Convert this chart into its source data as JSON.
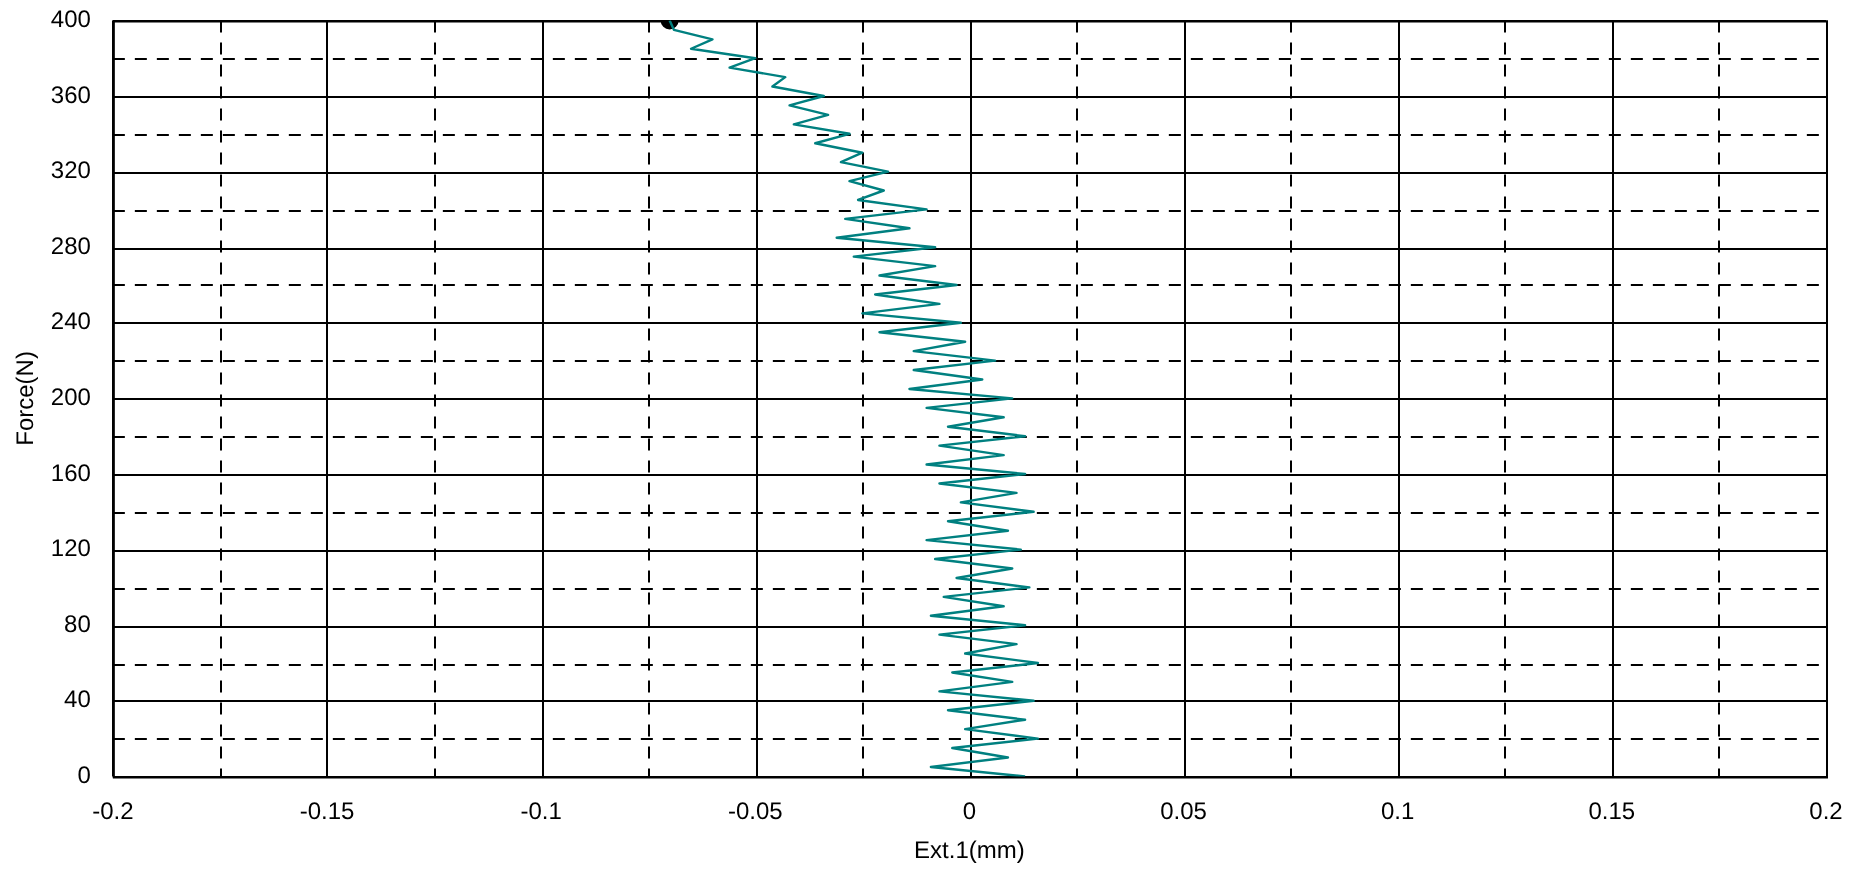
{
  "chart_data": {
    "type": "line",
    "xlabel": "Ext.1(mm)",
    "ylabel": "Force(N)",
    "xlim": [
      -0.2,
      0.2
    ],
    "ylim": [
      0,
      400
    ],
    "xticks": [
      -0.2,
      {
        "value": -0.175,
        "label": null
      },
      -0.15,
      {
        "value": -0.125,
        "label": null
      },
      -0.1,
      {
        "value": -0.075,
        "label": null
      },
      -0.05,
      {
        "value": -0.025,
        "label": null
      },
      0,
      {
        "value": 0.025,
        "label": null
      },
      0.05,
      {
        "value": 0.075,
        "label": null
      },
      0.1,
      {
        "value": 0.125,
        "label": null
      },
      0.15,
      {
        "value": 0.175,
        "label": null
      },
      0.2
    ],
    "yticks": [
      0,
      {
        "value": 20,
        "label": null
      },
      40,
      {
        "value": 60,
        "label": null
      },
      80,
      {
        "value": 100,
        "label": null
      },
      120,
      {
        "value": 140,
        "label": null
      },
      160,
      {
        "value": 180,
        "label": null
      },
      200,
      {
        "value": 220,
        "label": null
      },
      240,
      {
        "value": 260,
        "label": null
      },
      280,
      {
        "value": 300,
        "label": null
      },
      320,
      {
        "value": 340,
        "label": null
      },
      360,
      {
        "value": 380,
        "label": null
      },
      400
    ],
    "grid": true,
    "marker": "none",
    "series": [
      {
        "type": "line",
        "color": "#008080",
        "x": [
          0.013,
          -0.009,
          0.009,
          -0.004,
          0.016,
          -0.001,
          0.013,
          -0.005,
          0.015,
          -0.007,
          0.01,
          -0.004,
          0.016,
          -0.001,
          0.011,
          -0.007,
          0.013,
          -0.009,
          0.008,
          -0.006,
          0.014,
          -0.003,
          0.01,
          -0.008,
          0.012,
          -0.01,
          0.009,
          -0.005,
          0.015,
          -0.002,
          0.011,
          -0.007,
          0.013,
          -0.01,
          0.008,
          -0.007,
          0.013,
          -0.005,
          0.008,
          -0.01,
          0.01,
          -0.014,
          0.003,
          -0.013,
          0.006,
          -0.013,
          -0.001,
          -0.021,
          -0.002,
          -0.025,
          -0.007,
          -0.022,
          -0.003,
          -0.021,
          -0.008,
          -0.027,
          -0.008,
          -0.031,
          -0.014,
          -0.029,
          -0.01,
          -0.026,
          -0.02,
          -0.028,
          -0.019,
          -0.03,
          -0.025,
          -0.036,
          -0.028,
          -0.041,
          -0.033,
          -0.042,
          -0.034,
          -0.046,
          -0.043,
          -0.056,
          -0.05,
          -0.065,
          -0.06,
          -0.069,
          -0.07
        ],
        "values": [
          0,
          5,
          10,
          15,
          20,
          25,
          30,
          35,
          40,
          45,
          50,
          55,
          60,
          65,
          70,
          75,
          80,
          85,
          90,
          95,
          100,
          105,
          110,
          115,
          120,
          125,
          130,
          135,
          140,
          145,
          150,
          155,
          160,
          165,
          170,
          175,
          180,
          185,
          190,
          195,
          200,
          205,
          210,
          215,
          220,
          225,
          230,
          235,
          240,
          245,
          250,
          255,
          260,
          265,
          270,
          275,
          280,
          285,
          290,
          295,
          300,
          305,
          310,
          315,
          320,
          325,
          330,
          335,
          340,
          345,
          350,
          355,
          360,
          365,
          370,
          375,
          380,
          385,
          390,
          395,
          400
        ]
      },
      {
        "type": "scatter",
        "color": "#000000",
        "marker": "circle",
        "x": [
          -0.07
        ],
        "values": [
          400
        ]
      }
    ]
  }
}
